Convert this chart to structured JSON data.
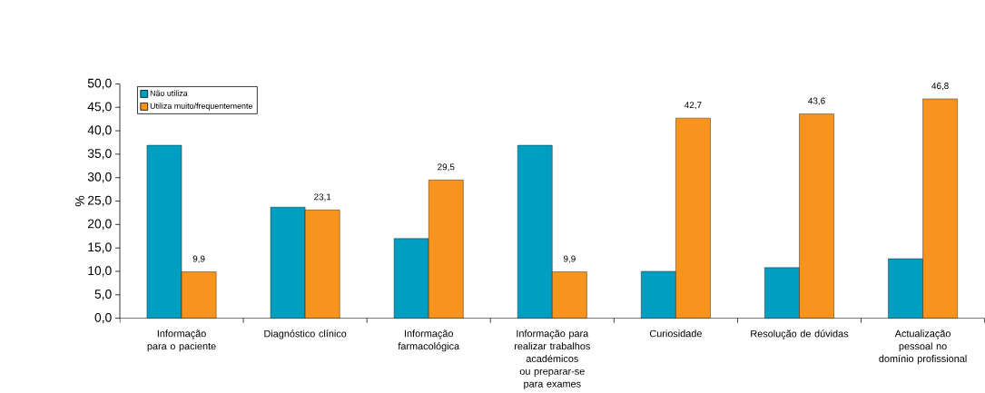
{
  "chart_data": {
    "type": "bar",
    "ylabel": "%",
    "categories": [
      "Informação para o paciente",
      "Diagnóstico clínico",
      "Informação farmacológica",
      "Informação para realizar trabalhos académicos ou preparar-se para exames",
      "Curiosidade",
      "Resolução de dúvidas",
      "Actualização pessoal no domínio profissional"
    ],
    "series": [
      {
        "name": "Não utiliza",
        "color": "#009fc2",
        "values": [
          36.9,
          23.7,
          17.0,
          36.9,
          10.0,
          10.8,
          12.7
        ]
      },
      {
        "name": "Utiliza muito/frequentemente",
        "color": "#f7941d",
        "values": [
          9.9,
          23.1,
          29.5,
          9.9,
          42.7,
          43.6,
          46.8
        ],
        "value_labels": [
          "9,9",
          "23,1",
          "29,5",
          "9,9",
          "42,7",
          "43,6",
          "46,8"
        ]
      }
    ],
    "ylim": [
      0,
      50
    ],
    "yticks": [
      {
        "value": 0,
        "label": "0,0"
      },
      {
        "value": 5,
        "label": "5,0"
      },
      {
        "value": 10,
        "label": "10,0"
      },
      {
        "value": 15,
        "label": "15,0"
      },
      {
        "value": 20,
        "label": "20,0"
      },
      {
        "value": 25,
        "label": "25,0"
      },
      {
        "value": 30,
        "label": "30,0"
      },
      {
        "value": 35,
        "label": "35,0"
      },
      {
        "value": 40,
        "label": "40,0"
      },
      {
        "value": 45,
        "label": "45,0"
      },
      {
        "value": 50,
        "label": "50,0"
      }
    ],
    "legend": "top left",
    "grid": false
  }
}
